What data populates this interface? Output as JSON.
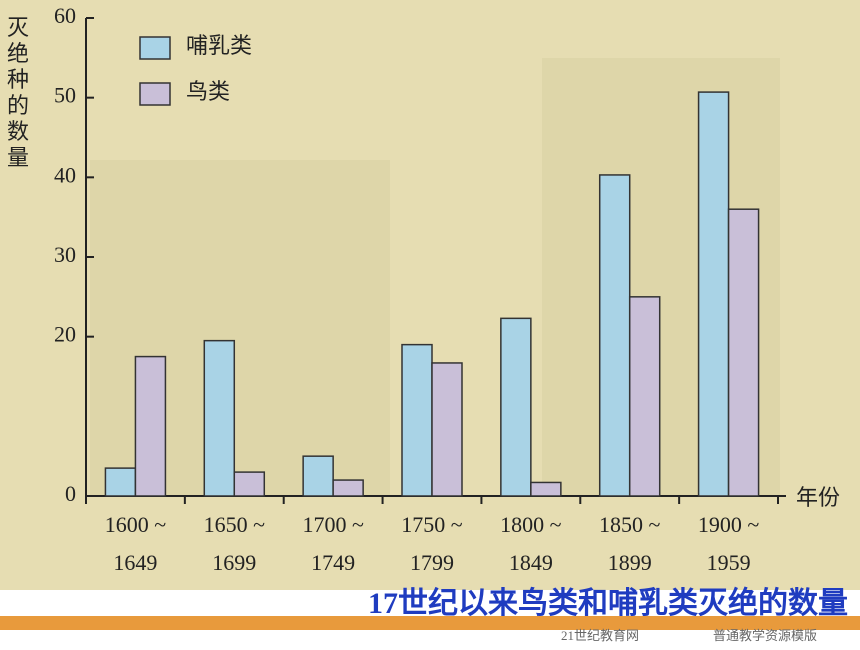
{
  "chart_data": {
    "type": "bar",
    "y_label": "灭绝种的数量",
    "x_label": "年份",
    "categories": [
      [
        "1600 ~",
        "1649"
      ],
      [
        "1650 ~",
        "1699"
      ],
      [
        "1700 ~",
        "1749"
      ],
      [
        "1750 ~",
        "1799"
      ],
      [
        "1800 ~",
        "1849"
      ],
      [
        "1850 ~",
        "1899"
      ],
      [
        "1900 ~",
        "1959"
      ]
    ],
    "series": [
      {
        "name": "哺乳类",
        "color": "#a9d3e6",
        "values": [
          3.5,
          19.5,
          5,
          19,
          22.3,
          40.3,
          50.7
        ]
      },
      {
        "name": "鸟类",
        "color": "#c9bfd8",
        "values": [
          17.5,
          3,
          2,
          16.7,
          1.7,
          25,
          36
        ]
      }
    ],
    "ylim": [
      0,
      60
    ],
    "yticks": [
      0,
      20,
      30,
      40,
      50,
      60
    ],
    "legend": "top-left"
  },
  "caption": "17世纪以来鸟类和哺乳类灭绝的数量",
  "footer": [
    "21世纪教育网",
    "普通教学资源模版"
  ]
}
